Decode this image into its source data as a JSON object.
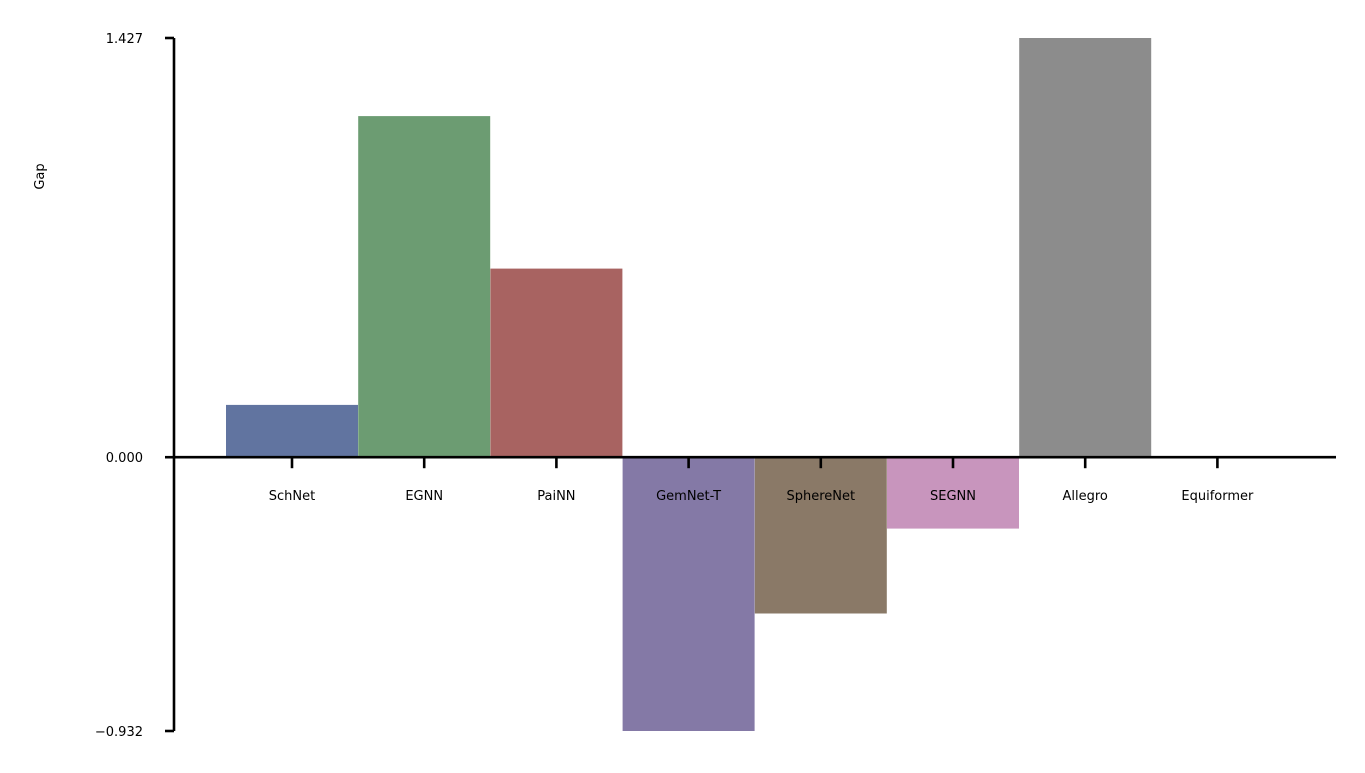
{
  "chart_data": {
    "type": "bar",
    "ylabel": "Gap",
    "xlabel": "",
    "categories": [
      "SchNet",
      "EGNN",
      "PaiNN",
      "GemNet-T",
      "SphereNet",
      "SEGNN",
      "Allegro",
      "Equiformer"
    ],
    "values": [
      0.178,
      1.161,
      0.642,
      -0.932,
      -0.532,
      -0.243,
      1.427,
      0.0
    ],
    "colors": [
      "#6174a0",
      "#6c9c72",
      "#a86361",
      "#8479a6",
      "#8a7967",
      "#c895bd",
      "#8c8c8c",
      "#cccccc"
    ],
    "ylim": [
      -0.932,
      1.427
    ],
    "yticks": [
      -0.932,
      0.0,
      1.427
    ],
    "ytick_labels": [
      "−0.932",
      "0.000",
      "1.427"
    ],
    "grid": false,
    "legend": "none"
  }
}
